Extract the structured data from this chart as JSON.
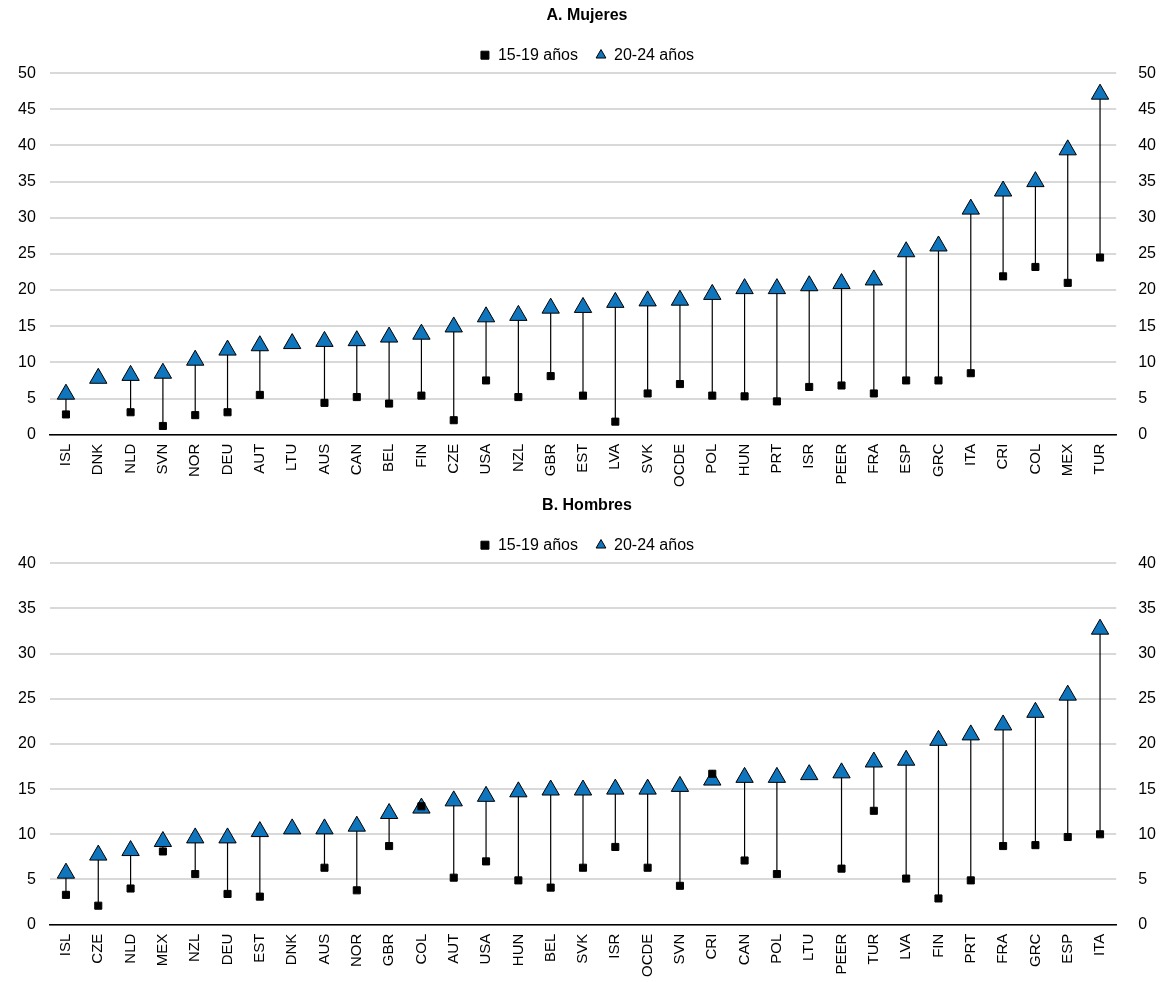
{
  "chart_data": [
    {
      "type": "scatter",
      "title": "A. Mujeres",
      "categories": [
        "ISL",
        "DNK",
        "NLD",
        "SVN",
        "NOR",
        "DEU",
        "AUT",
        "LTU",
        "AUS",
        "CAN",
        "BEL",
        "FIN",
        "CZE",
        "USA",
        "NZL",
        "GBR",
        "EST",
        "LVA",
        "SVK",
        "OCDE",
        "POL",
        "HUN",
        "PRT",
        "ISR",
        "PEER",
        "FRA",
        "ESP",
        "GRC",
        "ITA",
        "CRI",
        "COL",
        "MEX",
        "TUR"
      ],
      "series": [
        {
          "name": "15-19 años",
          "color": "#000000",
          "marker": "square",
          "values": [
            2.8,
            null,
            3.1,
            1.2,
            2.7,
            3.1,
            5.5,
            null,
            4.4,
            5.2,
            4.3,
            5.4,
            2.0,
            7.5,
            5.2,
            8.1,
            5.4,
            1.8,
            5.7,
            7.0,
            5.4,
            5.3,
            4.6,
            6.6,
            6.8,
            5.7,
            7.5,
            7.5,
            8.5,
            21.9,
            23.2,
            21.0,
            24.5
          ]
        },
        {
          "name": "20-24 años",
          "color": "#0f75bc",
          "marker": "triangle",
          "values": [
            5.6,
            7.8,
            8.2,
            8.5,
            10.3,
            11.7,
            12.3,
            12.6,
            12.9,
            13.0,
            13.5,
            13.9,
            14.9,
            16.3,
            16.5,
            17.5,
            17.6,
            18.3,
            18.5,
            18.6,
            19.4,
            20.2,
            20.2,
            20.6,
            20.9,
            21.4,
            25.3,
            26.1,
            31.2,
            33.7,
            35.0,
            39.4,
            47.1
          ]
        }
      ],
      "ylim": [
        0,
        50
      ],
      "yticks": [
        0,
        5,
        10,
        15,
        20,
        25,
        30,
        35,
        40,
        45,
        50
      ],
      "y2lim": [
        0,
        50
      ],
      "y2ticks": [
        0,
        5,
        10,
        15,
        20,
        25,
        30,
        35,
        40,
        45,
        50
      ],
      "grid": "y",
      "legend": "top"
    },
    {
      "type": "scatter",
      "title": "B. Hombres",
      "categories": [
        "ISL",
        "CZE",
        "NLD",
        "MEX",
        "NZL",
        "DEU",
        "EST",
        "DNK",
        "AUS",
        "NOR",
        "GBR",
        "COL",
        "AUT",
        "USA",
        "HUN",
        "BEL",
        "SVK",
        "ISR",
        "OCDE",
        "SVN",
        "CRI",
        "CAN",
        "POL",
        "LTU",
        "PEER",
        "TUR",
        "LVA",
        "FIN",
        "PRT",
        "FRA",
        "GRC",
        "ESP",
        "ITA"
      ],
      "series": [
        {
          "name": "15-19 años",
          "color": "#000000",
          "marker": "square",
          "values": [
            3.3,
            2.1,
            4.0,
            8.1,
            5.6,
            3.4,
            3.1,
            null,
            6.3,
            3.8,
            8.7,
            13.1,
            5.2,
            7.0,
            4.9,
            4.1,
            6.3,
            8.6,
            6.3,
            4.3,
            16.7,
            7.1,
            5.6,
            null,
            6.2,
            12.6,
            5.1,
            2.9,
            4.9,
            8.7,
            8.8,
            9.7,
            10.0
          ]
        },
        {
          "name": "20-24 años",
          "color": "#0f75bc",
          "marker": "triangle",
          "values": [
            5.7,
            7.7,
            8.2,
            9.2,
            9.6,
            9.6,
            10.3,
            10.6,
            10.6,
            10.9,
            12.3,
            12.9,
            13.7,
            14.2,
            14.7,
            14.9,
            14.9,
            15.0,
            15.0,
            15.3,
            16.0,
            16.3,
            16.3,
            16.6,
            16.8,
            18.0,
            18.2,
            20.4,
            21.0,
            22.1,
            23.5,
            25.4,
            32.7
          ]
        }
      ],
      "ylim": [
        0,
        40
      ],
      "yticks": [
        0,
        5,
        10,
        15,
        20,
        25,
        30,
        35,
        40
      ],
      "y2lim": [
        0,
        40
      ],
      "y2ticks": [
        0,
        5,
        10,
        15,
        20,
        25,
        30,
        35,
        40
      ],
      "grid": "y",
      "legend": "top"
    }
  ]
}
